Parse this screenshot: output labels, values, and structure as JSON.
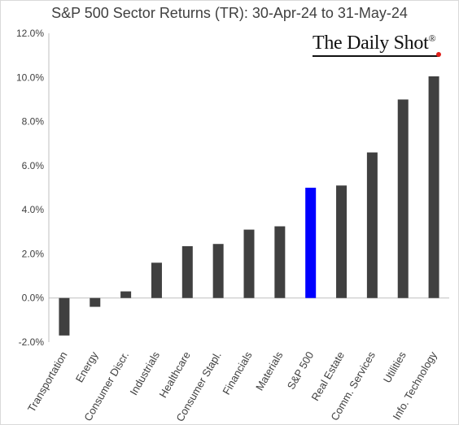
{
  "chart_data": {
    "type": "bar",
    "title": "S&P 500 Sector Returns (TR): 30-Apr-24 to 31-May-24",
    "xlabel": "",
    "ylabel": "",
    "ylim": [
      -2,
      12
    ],
    "yticks": [
      -2,
      0,
      2,
      4,
      6,
      8,
      10,
      12
    ],
    "ytick_labels": [
      "-2.0%",
      "0.0%",
      "2.0%",
      "4.0%",
      "6.0%",
      "8.0%",
      "10.0%",
      "12.0%"
    ],
    "grid": false,
    "legend": "none",
    "categories": [
      "Transportation",
      "Energy",
      "Consumer Discr.",
      "Industrials",
      "Healthcare",
      "Consumer Stapl.",
      "Financials",
      "Materials",
      "S&P 500",
      "Real Estate",
      "Comm. Services",
      "Utilities",
      "Info. Technology"
    ],
    "values": [
      -1.7,
      -0.4,
      0.3,
      1.6,
      2.35,
      2.45,
      3.1,
      3.25,
      5.0,
      5.1,
      6.6,
      9.0,
      10.05
    ],
    "colors": {
      "default": "#404040",
      "highlight": "#0000ff"
    },
    "highlight_category": "S&P 500"
  },
  "branding": {
    "logo_text": "The Daily Shot",
    "logo_mark": "®"
  }
}
